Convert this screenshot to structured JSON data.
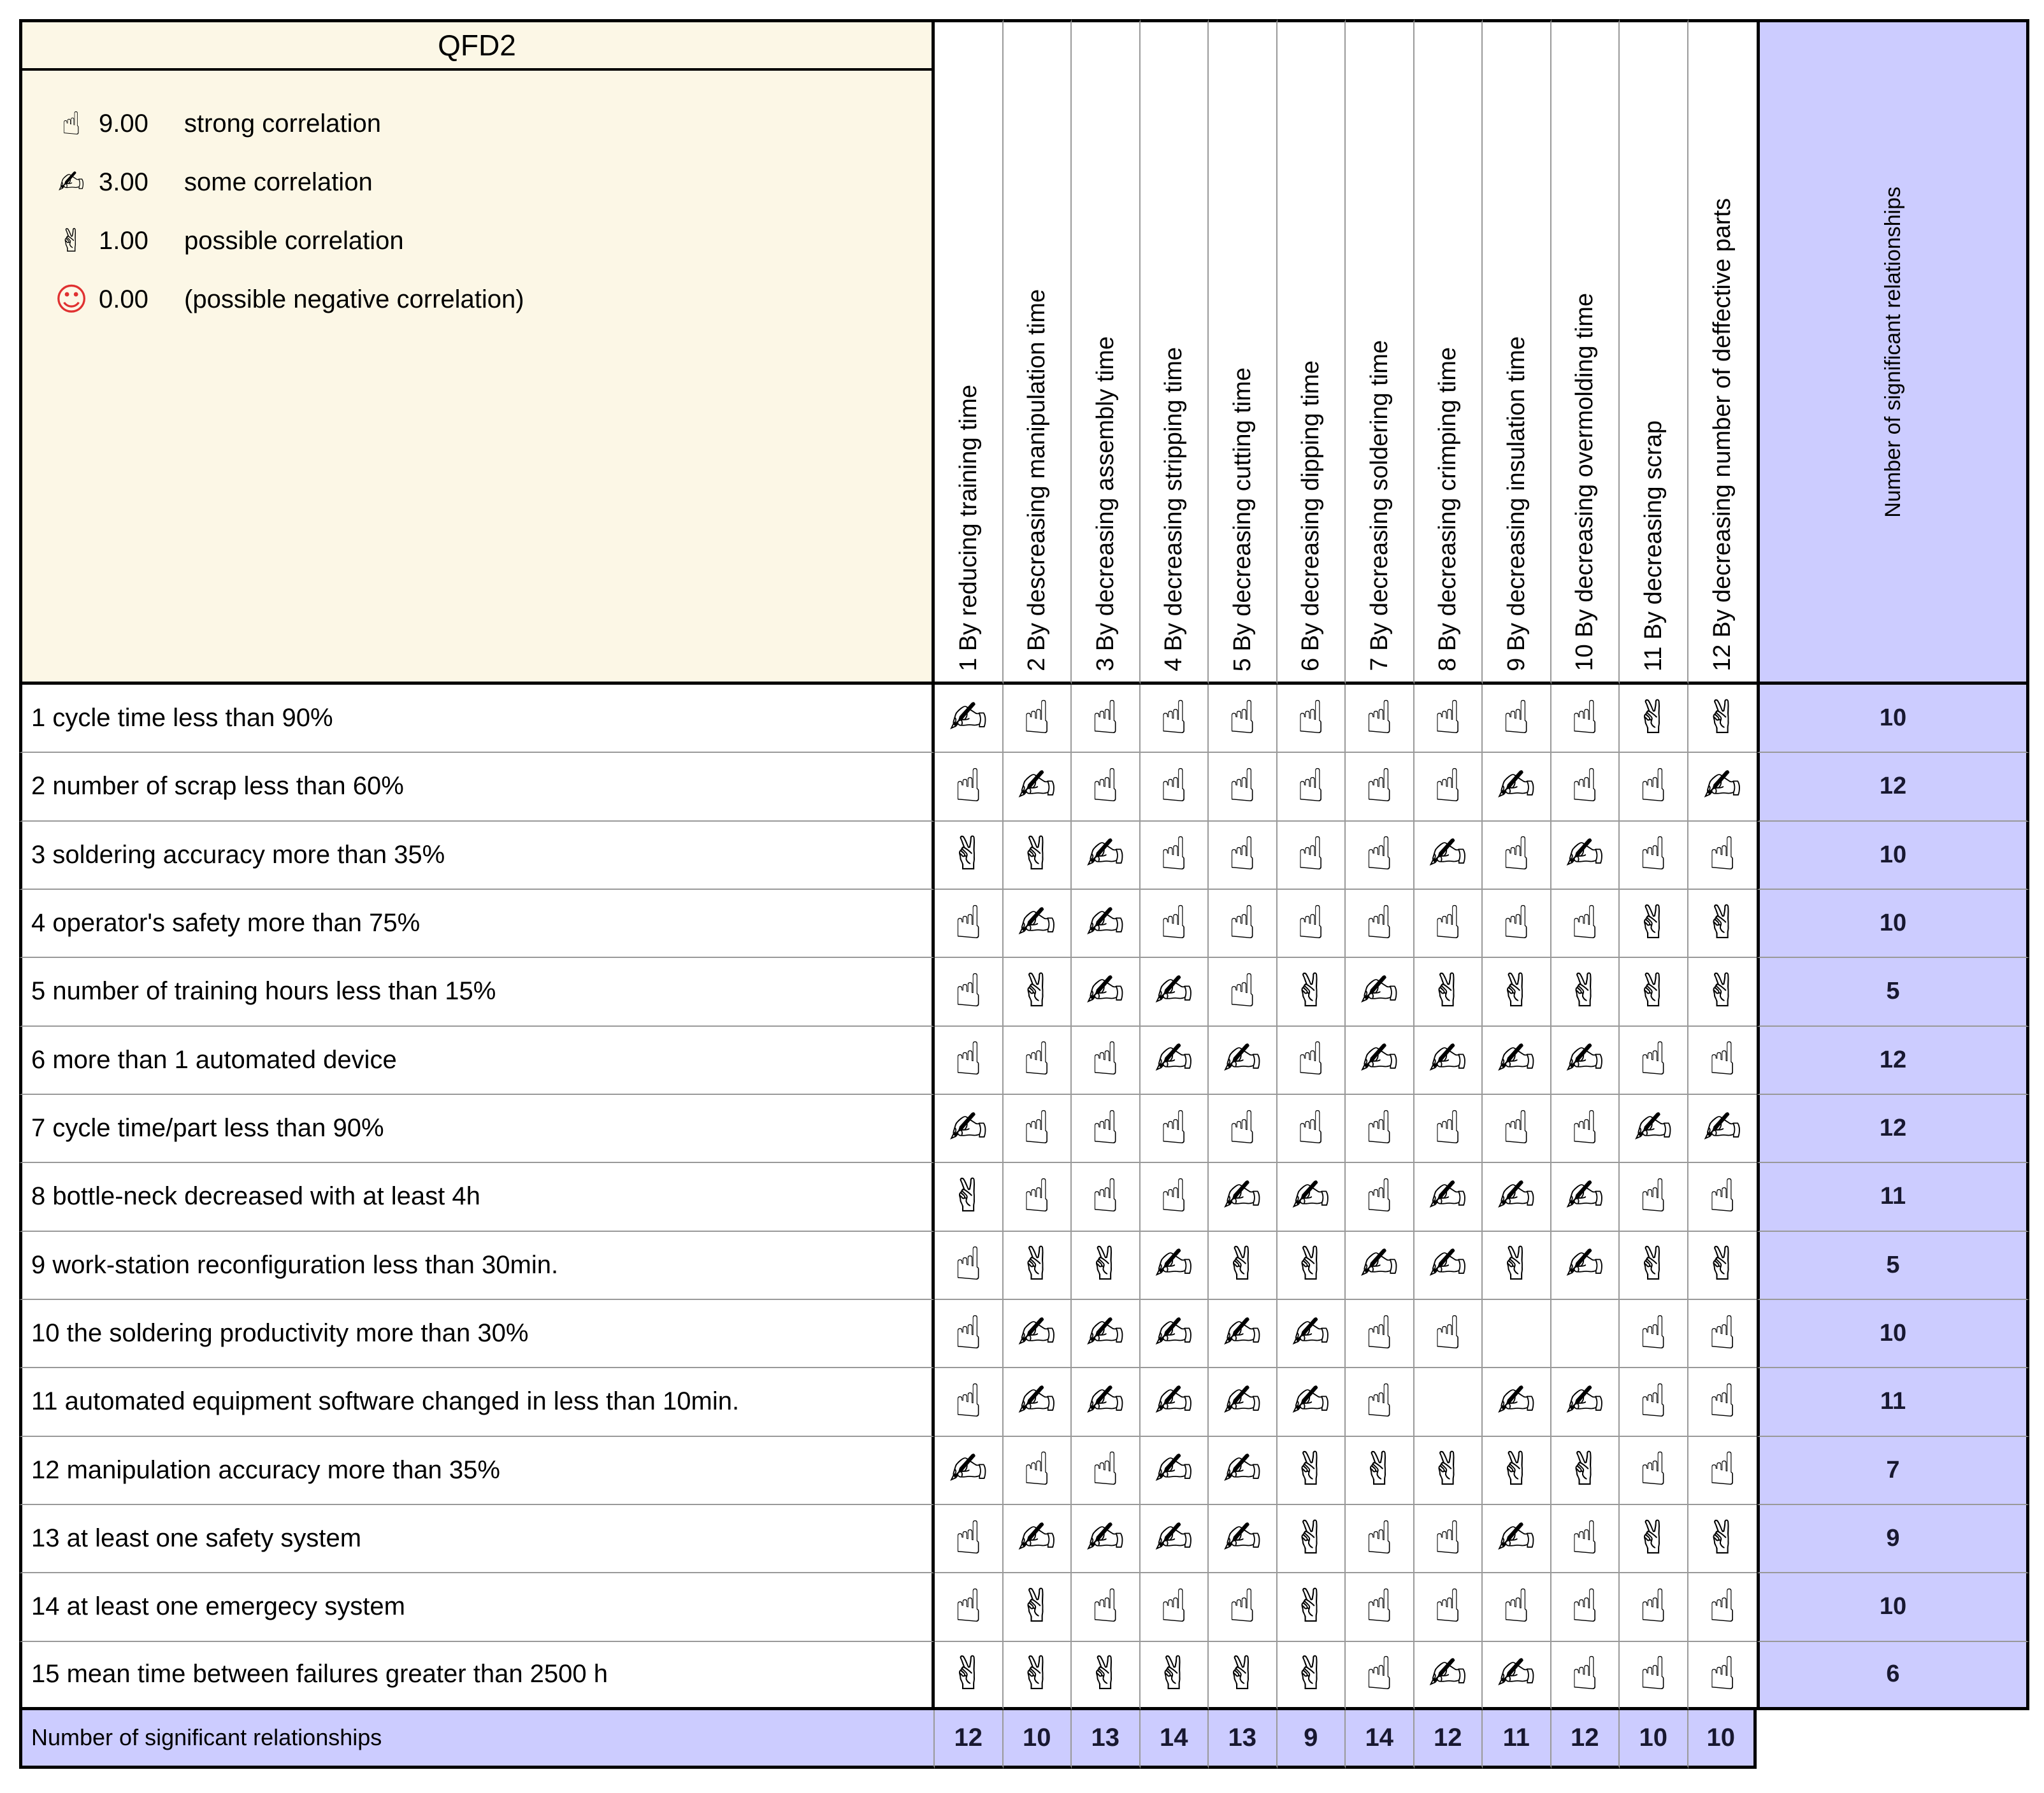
{
  "title": "QFD2",
  "legend": {
    "items": [
      {
        "glyph": "☝",
        "icon": "strong-correlation-icon",
        "value": "9.00",
        "label": "strong correlation"
      },
      {
        "glyph": "✍",
        "icon": "some-correlation-icon",
        "value": "3.00",
        "label": "some correlation"
      },
      {
        "glyph": "✌",
        "icon": "possible-correlation-icon",
        "value": "1.00",
        "label": "possible correlation"
      },
      {
        "glyph": "☺",
        "icon": "negative-correlation-icon",
        "value": "0.00",
        "label": "(possible negative correlation)"
      }
    ]
  },
  "symbol_map": {
    "9": {
      "glyph": "☝",
      "name": "strong-correlation-icon"
    },
    "3": {
      "glyph": "✍",
      "name": "some-correlation-icon"
    },
    "1": {
      "glyph": "✌",
      "name": "possible-correlation-icon"
    }
  },
  "columns": [
    "1 By reducing training time",
    "2 By descreasing manipulation time",
    "3 By decreasing assembly time",
    "4 By decreasing stripping time",
    "5 By decreasing cutting time",
    "6 By decreasing dipping time",
    "7 By decreasing soldering time",
    "8 By decreasing crimping time",
    "9 By decreasing insulation time",
    "10 By decreasing overmolding time",
    "11 By decreasing scrap",
    "12 By decreasing number of deffective parts"
  ],
  "right_header": "Number of significant relationships",
  "rows": [
    {
      "label": "1 cycle time less than 90%",
      "cells": [
        "3",
        "9",
        "9",
        "9",
        "9",
        "9",
        "9",
        "9",
        "9",
        "9",
        "1",
        "1"
      ],
      "significant": 10
    },
    {
      "label": "2 number of scrap less than 60%",
      "cells": [
        "9",
        "3",
        "9",
        "9",
        "9",
        "9",
        "9",
        "9",
        "3",
        "9",
        "9",
        "3"
      ],
      "significant": 12
    },
    {
      "label": "3 soldering accuracy more than 35%",
      "cells": [
        "1",
        "1",
        "3",
        "9",
        "9",
        "9",
        "9",
        "3",
        "9",
        "3",
        "9",
        "9"
      ],
      "significant": 10
    },
    {
      "label": "4 operator's safety more than 75%",
      "cells": [
        "9",
        "3",
        "3",
        "9",
        "9",
        "9",
        "9",
        "9",
        "9",
        "9",
        "1",
        "1"
      ],
      "significant": 10
    },
    {
      "label": "5 number of training hours less than 15%",
      "cells": [
        "9",
        "1",
        "3",
        "3",
        "9",
        "1",
        "3",
        "1",
        "1",
        "1",
        "1",
        "1"
      ],
      "significant": 5
    },
    {
      "label": "6 more than 1 automated device",
      "cells": [
        "9",
        "9",
        "9",
        "3",
        "3",
        "9",
        "3",
        "3",
        "3",
        "3",
        "9",
        "9"
      ],
      "significant": 12
    },
    {
      "label": "7 cycle time/part less than 90%",
      "cells": [
        "3",
        "9",
        "9",
        "9",
        "9",
        "9",
        "9",
        "9",
        "9",
        "9",
        "3",
        "3"
      ],
      "significant": 12
    },
    {
      "label": "8 bottle-neck decreased with at least 4h",
      "cells": [
        "1",
        "9",
        "9",
        "9",
        "3",
        "3",
        "9",
        "3",
        "3",
        "3",
        "9",
        "9"
      ],
      "significant": 11
    },
    {
      "label": "9 work-station reconfiguration less than 30min.",
      "cells": [
        "9",
        "1",
        "1",
        "3",
        "1",
        "1",
        "3",
        "3",
        "1",
        "3",
        "1",
        "1"
      ],
      "significant": 5
    },
    {
      "label": "10 the soldering productivity more than 30%",
      "cells": [
        "9",
        "3",
        "3",
        "3",
        "3",
        "3",
        "9",
        "9",
        "",
        "",
        "9",
        "9"
      ],
      "significant": 10
    },
    {
      "label": "11 automated equipment software changed  in less than  10min.",
      "cells": [
        "9",
        "3",
        "3",
        "3",
        "3",
        "3",
        "9",
        "",
        "3",
        "3",
        "9",
        "9"
      ],
      "significant": 11
    },
    {
      "label": "12 manipulation accuracy more than 35%",
      "cells": [
        "3",
        "9",
        "9",
        "3",
        "3",
        "1",
        "1",
        "1",
        "1",
        "1",
        "9",
        "9"
      ],
      "significant": 7
    },
    {
      "label": "13 at least one safety system",
      "cells": [
        "9",
        "3",
        "3",
        "3",
        "3",
        "1",
        "9",
        "9",
        "3",
        "9",
        "1",
        "1"
      ],
      "significant": 9
    },
    {
      "label": "14 at least one emergecy system",
      "cells": [
        "9",
        "1",
        "9",
        "9",
        "9",
        "1",
        "9",
        "9",
        "9",
        "9",
        "9",
        "9"
      ],
      "significant": 10
    },
    {
      "label": "15 mean time between failures greater than 2500 h",
      "cells": [
        "1",
        "1",
        "1",
        "1",
        "1",
        "1",
        "9",
        "3",
        "3",
        "9",
        "9",
        "9"
      ],
      "significant": 6
    }
  ],
  "totals": {
    "label": "Number of significant relationships",
    "values": [
      12,
      10,
      13,
      14,
      13,
      9,
      14,
      12,
      11,
      12,
      10,
      10
    ]
  },
  "colors": {
    "cream": "#fcf7e6",
    "purple": "#ccccff",
    "grid": "#999999",
    "numtext": "#181830",
    "negative": "#e03131"
  }
}
